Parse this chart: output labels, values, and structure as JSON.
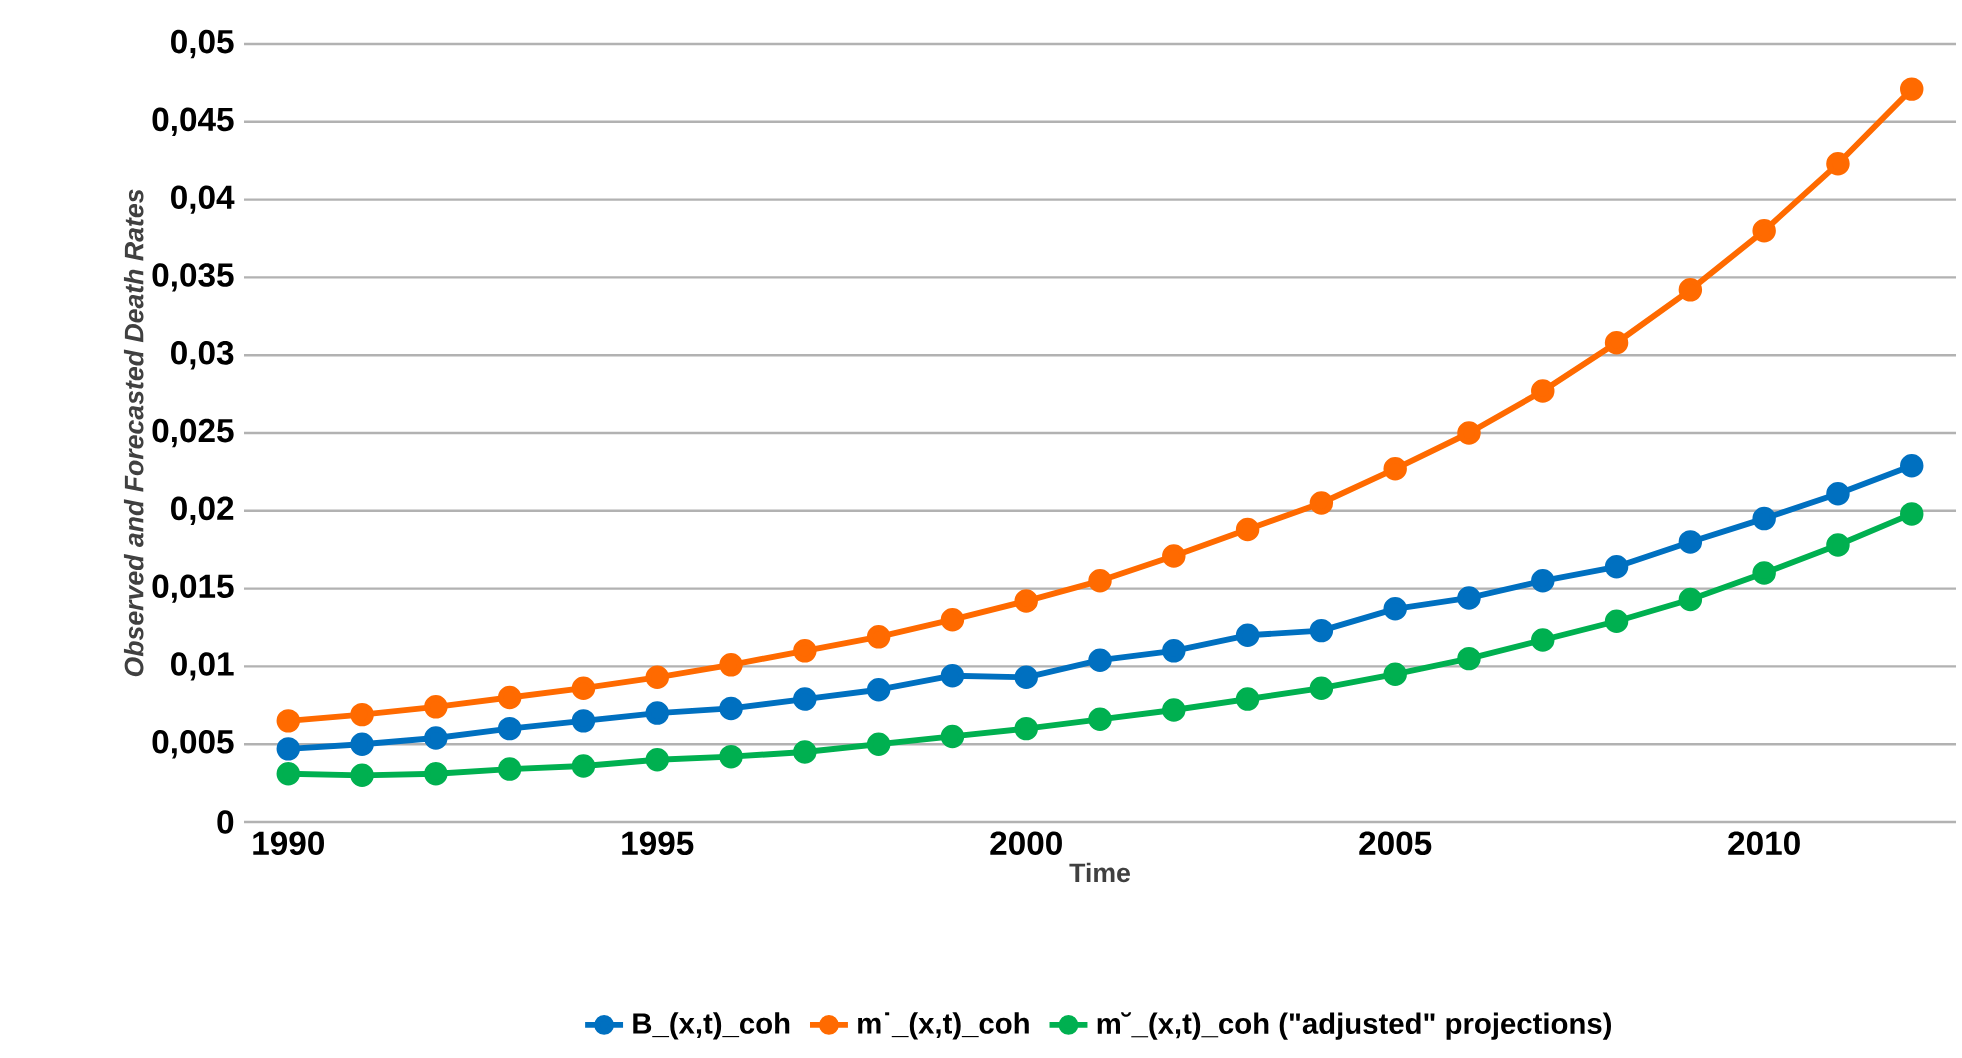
{
  "chart_data": {
    "type": "line",
    "xlabel": "Time",
    "ylabel": "Observed and Forecasted Death Rates",
    "x": [
      1990,
      1991,
      1992,
      1993,
      1994,
      1995,
      1996,
      1997,
      1998,
      1999,
      2000,
      2001,
      2002,
      2003,
      2004,
      2005,
      2006,
      2007,
      2008,
      2009,
      2010,
      2011,
      2012
    ],
    "series": [
      {
        "name": "B_(x,t)_coh",
        "color": "#0070c0",
        "values": [
          0.0047,
          0.005,
          0.0054,
          0.006,
          0.0065,
          0.007,
          0.0073,
          0.0079,
          0.0085,
          0.0094,
          0.0093,
          0.0104,
          0.011,
          0.012,
          0.0123,
          0.0137,
          0.0144,
          0.0155,
          0.0164,
          0.018,
          0.0195,
          0.0211,
          0.0229
        ]
      },
      {
        "name": "m˙_(x,t)_coh",
        "color": "#ff6a00",
        "values": [
          0.0065,
          0.0069,
          0.0074,
          0.008,
          0.0086,
          0.0093,
          0.0101,
          0.011,
          0.0119,
          0.013,
          0.0142,
          0.0155,
          0.0171,
          0.0188,
          0.0205,
          0.0227,
          0.025,
          0.0277,
          0.0308,
          0.0342,
          0.038,
          0.0423,
          0.0471
        ]
      },
      {
        "name": "m˘_(x,t)_coh (\"adjusted\"  projections)",
        "color": "#00b050",
        "values": [
          0.0031,
          0.003,
          0.0031,
          0.0034,
          0.0036,
          0.004,
          0.0042,
          0.0045,
          0.005,
          0.0055,
          0.006,
          0.0066,
          0.0072,
          0.0079,
          0.0086,
          0.0095,
          0.0105,
          0.0117,
          0.0129,
          0.0143,
          0.016,
          0.0178,
          0.0198
        ]
      }
    ],
    "xlim": [
      1989.4,
      2012.6
    ],
    "xticks": [
      1990,
      1995,
      2000,
      2005,
      2010
    ],
    "ylim": [
      0,
      0.05
    ],
    "yticks": [
      0,
      {
        "value": 0.005,
        "label": "0,005"
      },
      {
        "value": 0.01,
        "label": "0,01"
      },
      {
        "value": 0.015,
        "label": "0,015"
      },
      {
        "value": 0.02,
        "label": "0,02"
      },
      {
        "value": 0.025,
        "label": "0,025"
      },
      {
        "value": 0.03,
        "label": "0,03"
      },
      {
        "value": 0.035,
        "label": "0,035"
      },
      {
        "value": 0.04,
        "label": "0,04"
      },
      {
        "value": 0.045,
        "label": "0,045"
      },
      {
        "value": 0.05,
        "label": "0,05"
      }
    ],
    "grid": "y",
    "legend": "bottom",
    "marker": "circle",
    "line_style": "solid"
  }
}
